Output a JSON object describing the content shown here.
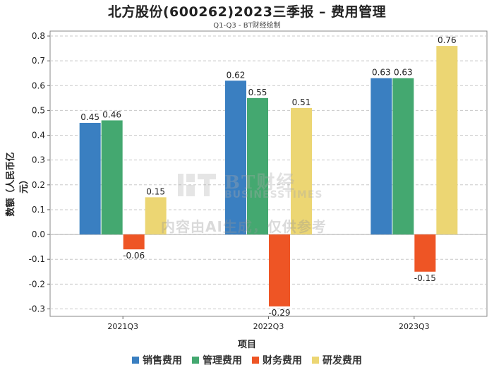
{
  "chart_data": {
    "type": "bar",
    "title": "北方股份(600262)2023三季报 – 费用管理",
    "subtitle": "Q1-Q3 - BT财经绘制",
    "xlabel": "项目",
    "ylabel": "数额（人民币亿元）",
    "categories": [
      "2021Q3",
      "2022Q3",
      "2023Q3"
    ],
    "ylim": [
      -0.33,
      0.82
    ],
    "yticks": [
      -0.3,
      -0.2,
      -0.1,
      0.0,
      0.1,
      0.2,
      0.3,
      0.4,
      0.5,
      0.6,
      0.7,
      0.8
    ],
    "ytick_labels": [
      "-0.3",
      "-0.2",
      "-0.1",
      "0.0",
      "0.1",
      "0.2",
      "0.3",
      "0.4",
      "0.5",
      "0.6",
      "0.7",
      "0.8"
    ],
    "grid": true,
    "legend_position": "bottom",
    "series": [
      {
        "name": "销售费用",
        "color": "#3a7fc1",
        "values": [
          0.45,
          0.62,
          0.63
        ],
        "labels": [
          "0.45",
          "0.62",
          "0.63"
        ]
      },
      {
        "name": "管理费用",
        "color": "#44a870",
        "values": [
          0.46,
          0.55,
          0.63
        ],
        "labels": [
          "0.46",
          "0.55",
          "0.63"
        ]
      },
      {
        "name": "财务费用",
        "color": "#ee5525",
        "values": [
          -0.06,
          -0.29,
          -0.15
        ],
        "labels": [
          "-0.06",
          "-0.29",
          "-0.15"
        ]
      },
      {
        "name": "研发费用",
        "color": "#ecd673",
        "values": [
          0.15,
          0.51,
          0.76
        ],
        "labels": [
          "0.15",
          "0.51",
          "0.76"
        ]
      }
    ]
  },
  "watermark": {
    "brand": "BT财经",
    "brand_en": "BUSINESSTIMES",
    "notice": "内容由AI生成，仅供参考"
  }
}
